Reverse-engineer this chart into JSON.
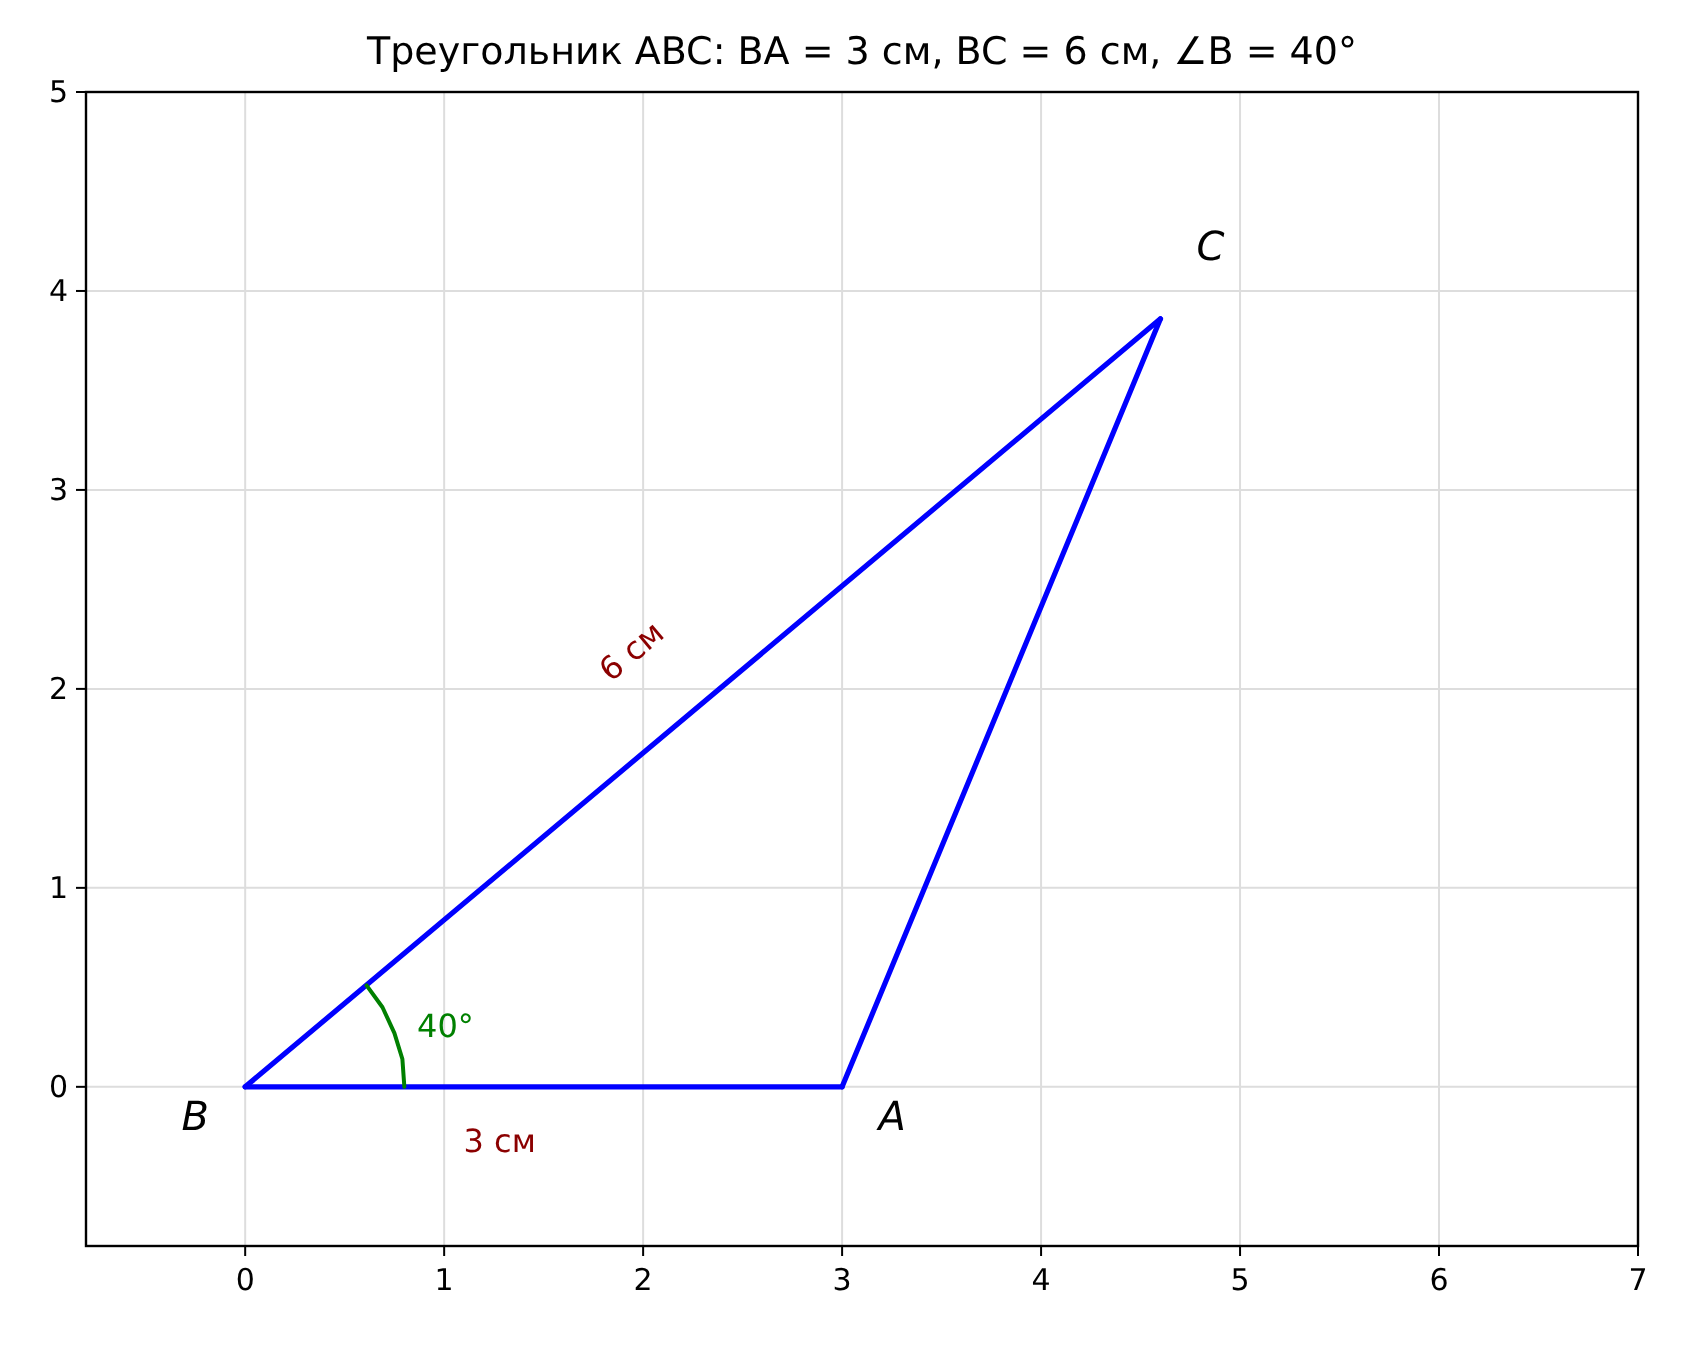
{
  "chart_data": {
    "type": "line",
    "title": "Треугольник ABC: BA = 3 см, BC = 6 см, ∠B = 40°",
    "xlim": [
      -0.8,
      7
    ],
    "ylim": [
      -0.8,
      5
    ],
    "xticks": [
      0,
      1,
      2,
      3,
      4,
      5,
      6,
      7
    ],
    "yticks": [
      0,
      1,
      2,
      3,
      4,
      5
    ],
    "grid": true,
    "marker": "none",
    "line_style": "solid",
    "series": [
      {
        "color": "#0000ff",
        "x": [
          0,
          3
        ],
        "values": [
          0,
          0
        ]
      },
      {
        "color": "#0000ff",
        "x": [
          3,
          4.6
        ],
        "values": [
          0,
          3.86
        ]
      },
      {
        "color": "#0000ff",
        "x": [
          0,
          4.6
        ],
        "values": [
          0,
          3.86
        ]
      },
      {
        "color": "#008000",
        "x": [
          0.61,
          0.69,
          0.75,
          0.79,
          0.8
        ],
        "values": [
          0.51,
          0.4,
          0.27,
          0.14,
          0
        ]
      }
    ],
    "annotations": [
      "B",
      "A",
      "C",
      "6 см",
      "3 см",
      "40°"
    ]
  }
}
